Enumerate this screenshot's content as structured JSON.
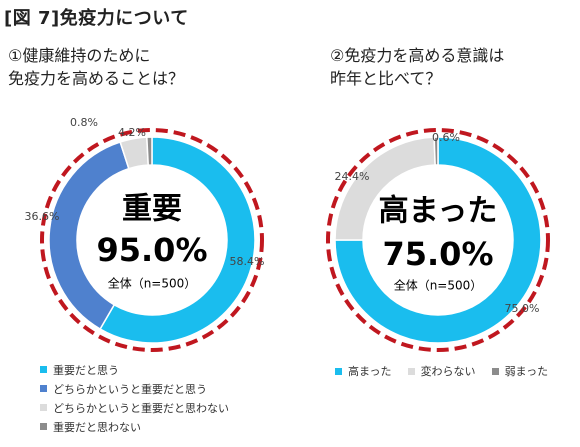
{
  "header": {
    "title": "[図 7]免疫力について"
  },
  "colors": {
    "cyan": "#1ABDEE",
    "blue": "#4F81CE",
    "light_gray": "#DCDCDC",
    "dark_gray": "#8C8C8C",
    "red_dash": "#C0171F"
  },
  "chart_data": [
    {
      "type": "pie",
      "title": "①健康維持のために\n免疫力を高めることは？",
      "categories": [
        "重要だと思う",
        "どちらかというと重要だと思う",
        "どちらかというと重要だと思わない",
        "重要だと思わない"
      ],
      "values": [
        58.4,
        36.6,
        4.2,
        0.8
      ],
      "value_labels": [
        "58.4%",
        "36.6%",
        "4.2%",
        "0.8%"
      ],
      "colors": [
        "#1ABDEE",
        "#4F81CE",
        "#DCDCDC",
        "#8C8C8C"
      ],
      "center": {
        "main": "重要",
        "value": "95.0%",
        "sub": "全体（n=500）"
      },
      "legend_position": "bottom"
    },
    {
      "type": "pie",
      "title": "②免疫力を高める意識は\n昨年と比べて？",
      "categories": [
        "高まった",
        "変わらない",
        "弱まった"
      ],
      "values": [
        75.0,
        24.4,
        0.6
      ],
      "value_labels": [
        "75.0%",
        "24.4%",
        "0.6%"
      ],
      "colors": [
        "#1ABDEE",
        "#DCDCDC",
        "#8C8C8C"
      ],
      "center": {
        "main": "高まった",
        "value": "75.0%",
        "sub": "全体（n=500）"
      },
      "legend_position": "bottom"
    }
  ]
}
